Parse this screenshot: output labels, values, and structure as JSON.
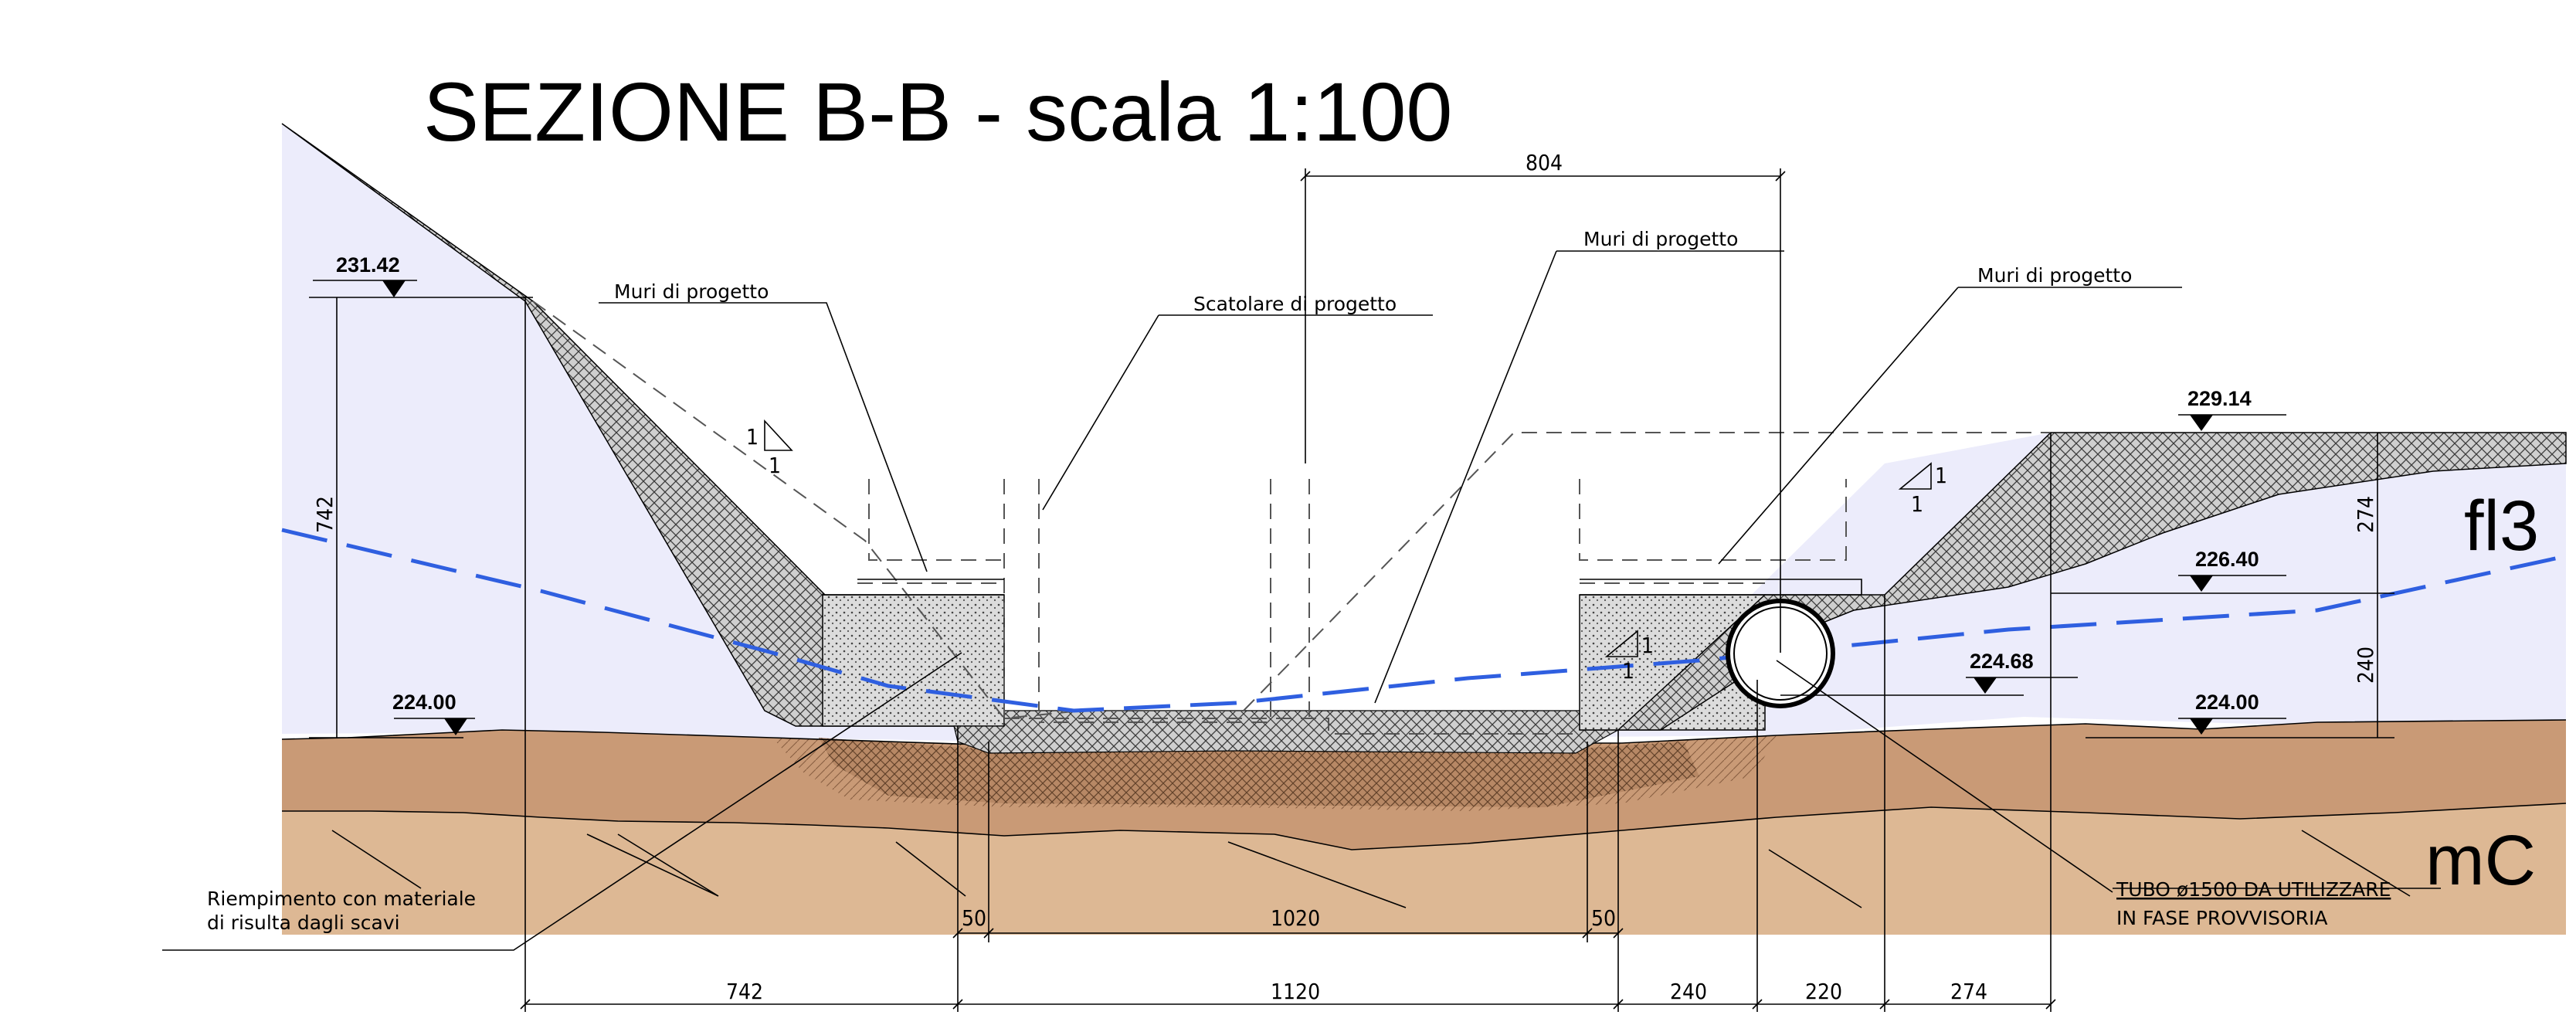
{
  "title": "SEZIONE B-B - scala 1:100",
  "labels": {
    "muri_left": "Muri di progetto",
    "scatolare": "Scatolare di progetto",
    "muri_center": "Muri di progetto",
    "muri_right": "Muri di progetto",
    "riempimento_1": "Riempimento con materiale",
    "riempimento_2": "di risulta dagli scavi",
    "tubo_1": "TUBO ø1500 DA UTILIZZARE",
    "tubo_2": "IN FASE PROVVISORIA"
  },
  "elevations": {
    "e231": "231.42",
    "e224_left": "224.00",
    "e229": "229.14",
    "e226": "226.40",
    "e224_68": "224.68",
    "e224_right": "224.00"
  },
  "layers": {
    "fl3": "fl3",
    "mC": "mC"
  },
  "slopes": {
    "one": "1"
  },
  "dimensions": {
    "top_804": "804",
    "left_742_vertical": "742",
    "right_274_vertical": "274",
    "right_240_vertical": "240",
    "base_50_left": "50",
    "base_1020": "1020",
    "base_50_right": "50",
    "bottom_742": "742",
    "bottom_1120": "1120",
    "bottom_240": "240",
    "bottom_220": "220",
    "bottom_274": "274"
  },
  "colors": {
    "fill_soil": "#ececfb",
    "alluvial": "#cc9a76",
    "substrate": "#ddb894",
    "embankment": "#c4c4c4",
    "water_table": "#2f5fe0"
  }
}
